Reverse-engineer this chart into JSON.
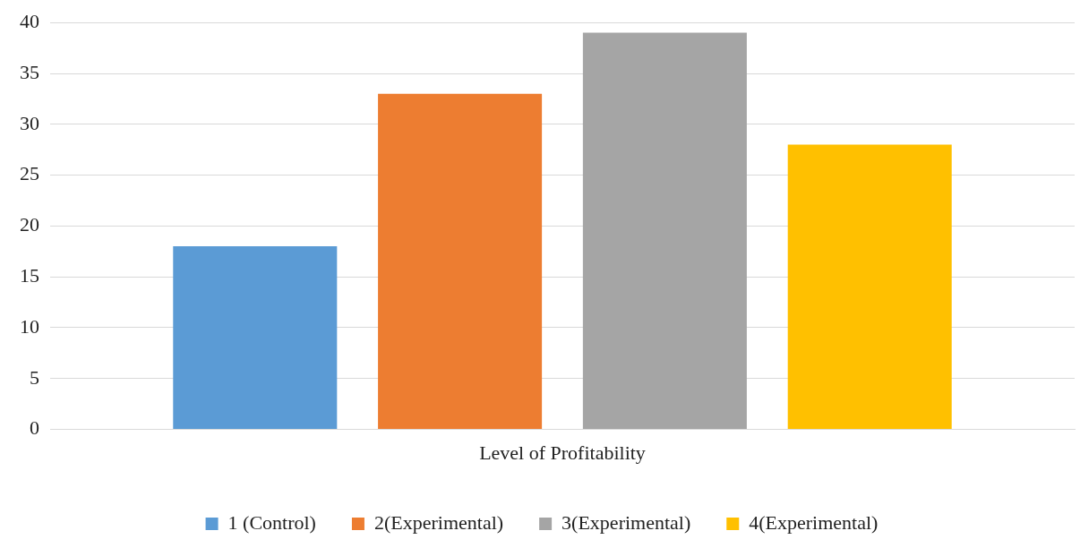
{
  "chart_data": {
    "type": "bar",
    "categories": [
      "Level of Profitability"
    ],
    "series": [
      {
        "name": "1 (Control)",
        "color": "#5b9bd5",
        "values": [
          18
        ]
      },
      {
        "name": "2(Experimental)",
        "color": "#ed7d31",
        "values": [
          33
        ]
      },
      {
        "name": "3(Experimental)",
        "color": "#a5a5a5",
        "values": [
          39
        ]
      },
      {
        "name": "4(Experimental)",
        "color": "#ffc000",
        "values": [
          28
        ]
      }
    ],
    "ylim": [
      0,
      40
    ],
    "yticks": [
      0,
      5,
      10,
      15,
      20,
      25,
      30,
      35,
      40
    ],
    "grid": "y",
    "legend": "bottom"
  }
}
